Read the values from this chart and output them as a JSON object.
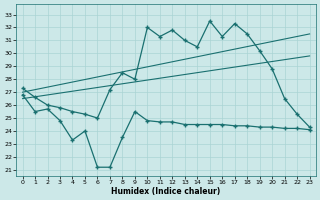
{
  "xlabel": "Humidex (Indice chaleur)",
  "bg_color": "#cce8e8",
  "line_color": "#1a7070",
  "grid_color": "#aad4d4",
  "xlim": [
    -0.5,
    23.5
  ],
  "ylim": [
    20.5,
    33.8
  ],
  "yticks": [
    21,
    22,
    23,
    24,
    25,
    26,
    27,
    28,
    29,
    30,
    31,
    32,
    33
  ],
  "xticks": [
    0,
    1,
    2,
    3,
    4,
    5,
    6,
    7,
    8,
    9,
    10,
    11,
    12,
    13,
    14,
    15,
    16,
    17,
    18,
    19,
    20,
    21,
    22,
    23
  ],
  "line1_x": [
    0,
    1,
    2,
    3,
    4,
    5,
    6,
    7,
    8,
    9,
    10,
    11,
    12,
    13,
    14,
    15,
    16,
    17,
    18,
    19,
    20,
    21,
    22,
    23
  ],
  "line1_y": [
    27.3,
    26.6,
    26.0,
    25.8,
    25.5,
    25.3,
    25.0,
    27.2,
    28.5,
    28.0,
    32.0,
    31.3,
    31.8,
    31.0,
    30.5,
    32.5,
    31.3,
    32.3,
    31.5,
    30.2,
    28.8,
    26.5,
    25.3,
    24.3
  ],
  "line2_x": [
    0,
    1,
    2,
    3,
    4,
    5,
    6,
    7,
    8,
    9,
    10,
    11,
    12,
    13,
    14,
    15,
    16,
    17,
    18,
    19,
    20,
    21,
    22,
    23
  ],
  "line2_y": [
    26.8,
    25.5,
    25.7,
    24.8,
    23.3,
    24.0,
    21.2,
    21.2,
    23.5,
    25.5,
    24.8,
    24.7,
    24.7,
    24.5,
    24.5,
    24.5,
    24.5,
    24.4,
    24.4,
    24.3,
    24.3,
    24.2,
    24.2,
    24.1
  ],
  "trend1_x": [
    0,
    23
  ],
  "trend1_y": [
    27.0,
    31.5
  ],
  "trend2_x": [
    0,
    23
  ],
  "trend2_y": [
    26.5,
    29.8
  ]
}
